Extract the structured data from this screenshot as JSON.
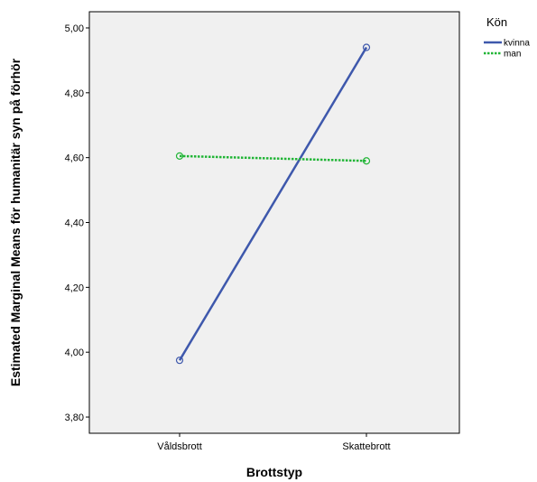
{
  "chart_data": {
    "type": "line",
    "xlabel": "Brottstyp",
    "ylabel": "Estimated Marginal Means för humanitär syn på förhör",
    "categories": [
      "Våldsbrott",
      "Skattebrott"
    ],
    "ylim": [
      3.75,
      5.05
    ],
    "yticks": [
      3.8,
      4.0,
      4.2,
      4.4,
      4.6,
      4.8,
      5.0
    ],
    "ytick_labels": [
      "3,80",
      "4,00",
      "4,20",
      "4,40",
      "4,60",
      "4,80",
      "5,00"
    ],
    "grid": false,
    "plot_background": "#f0f0f0",
    "legend": {
      "title": "Kön",
      "position": "right-top"
    },
    "series": [
      {
        "name": "kvinna",
        "values": [
          3.975,
          4.94
        ],
        "color": "#3e58ac",
        "style": "solid",
        "marker": "circle-open"
      },
      {
        "name": "man",
        "values": [
          4.605,
          4.59
        ],
        "color": "#21b536",
        "style": "dotted",
        "marker": "circle-open"
      }
    ]
  }
}
